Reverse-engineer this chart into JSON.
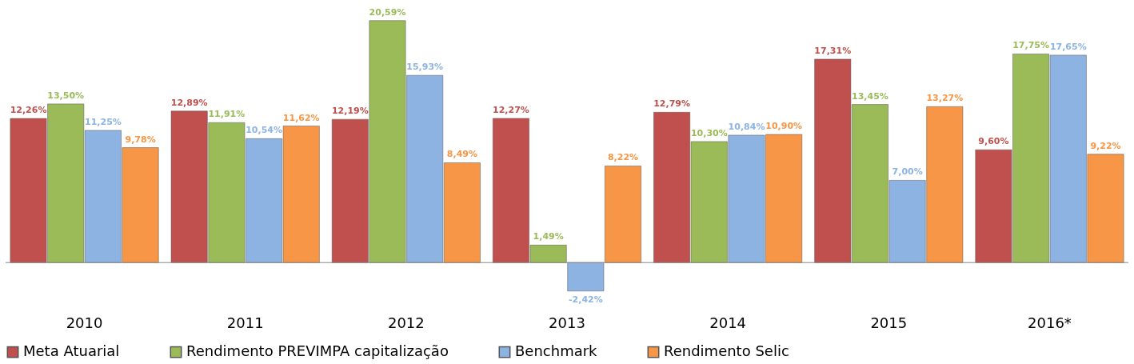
{
  "chart_data": {
    "type": "bar",
    "categories": [
      "2010",
      "2011",
      "2012",
      "2013",
      "2014",
      "2015",
      "2016*"
    ],
    "series": [
      {
        "name": "Meta Atuarial",
        "color": "#c0504d",
        "values": [
          12.26,
          12.89,
          12.19,
          12.27,
          12.79,
          17.31,
          9.6
        ],
        "value_labels": [
          "12,26%",
          "12,89%",
          "12,19%",
          "12,27%",
          "12,79%",
          "17,31%",
          "9,60%"
        ]
      },
      {
        "name": "Rendimento PREVIMPA capitalização",
        "color": "#9bbb59",
        "values": [
          13.5,
          11.91,
          20.59,
          1.49,
          10.3,
          13.45,
          17.75
        ],
        "value_labels": [
          "13,50%",
          "11,91%",
          "20,59%",
          "1,49%",
          "10,30%",
          "13,45%",
          "17,75%"
        ]
      },
      {
        "name": "Benchmark",
        "color": "#8db3e2",
        "values": [
          11.25,
          10.54,
          15.93,
          -2.42,
          10.84,
          7.0,
          17.65
        ],
        "value_labels": [
          "11,25%",
          "10,54%",
          "15,93%",
          "-2,42%",
          "10,84%",
          "7,00%",
          "17,65%"
        ]
      },
      {
        "name": "Rendimento Selic",
        "color": "#f79646",
        "values": [
          9.78,
          11.62,
          8.49,
          8.22,
          10.9,
          13.27,
          9.22
        ],
        "value_labels": [
          "9,78%",
          "11,62%",
          "8,49%",
          "8,22%",
          "10,90%",
          "13,27%",
          "9,22%"
        ]
      }
    ],
    "legend": "bottom",
    "grid": false
  }
}
